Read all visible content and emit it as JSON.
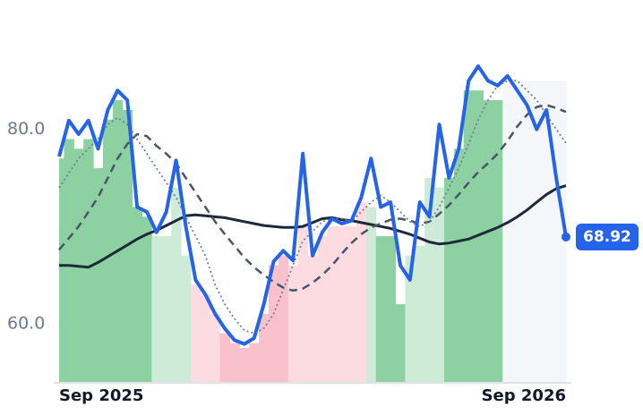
{
  "chart_data": {
    "type": "line",
    "categories": [
      "Sep 2025",
      null,
      null,
      null,
      null,
      null,
      null,
      null,
      null,
      null,
      null,
      null,
      null,
      null,
      null,
      null,
      null,
      null,
      null,
      null,
      null,
      null,
      null,
      null,
      null,
      null,
      null,
      null,
      null,
      null,
      null,
      null,
      null,
      null,
      null,
      null,
      null,
      null,
      null,
      null,
      null,
      null,
      null,
      null,
      null,
      null,
      null,
      null,
      null,
      null,
      null,
      null,
      "Sep 2026"
    ],
    "ylim": [
      54,
      90
    ],
    "yticks": [
      {
        "value": 60,
        "label": "60.0"
      },
      {
        "value": 80,
        "label": "80.0"
      }
    ],
    "bars": {
      "values": [
        77,
        79,
        78,
        79,
        76,
        81,
        83,
        82,
        72,
        71,
        69,
        69,
        74,
        67,
        64,
        63,
        61,
        59,
        58,
        57.5,
        58,
        61,
        66,
        67,
        66,
        70,
        67,
        69,
        70,
        70,
        70,
        72.5,
        72,
        69,
        69,
        62,
        67,
        68,
        75,
        74,
        75,
        78,
        84,
        84,
        83,
        83,
        85,
        85,
        85,
        85,
        85,
        85,
        85
      ],
      "colors": [
        "#8dd0a1",
        "#8dd0a1",
        "#8dd0a1",
        "#8dd0a1",
        "#8dd0a1",
        "#8dd0a1",
        "#8dd0a1",
        "#8dd0a1",
        "#8dd0a1",
        "#8dd0a1",
        "#cdebd7",
        "#cdebd7",
        "#cdebd7",
        "#cdebd7",
        "#fcdbe1",
        "#fcdbe1",
        "#fcdbe1",
        "#f8c1cb",
        "#f8c1cb",
        "#f8c1cb",
        "#f8c1cb",
        "#f8c1cb",
        "#f8c1cb",
        "#f8c1cb",
        "#fcdbe1",
        "#fcdbe1",
        "#fcdbe1",
        "#fcdbe1",
        "#fcdbe1",
        "#fcdbe1",
        "#fcdbe1",
        "#fcdbe1",
        "#cdebd7",
        "#8dd0a1",
        "#8dd0a1",
        "#8dd0a1",
        "#cdebd7",
        "#cdebd7",
        "#cdebd7",
        "#cdebd7",
        "#8dd0a1",
        "#8dd0a1",
        "#8dd0a1",
        "#8dd0a1",
        "#8dd0a1",
        "#8dd0a1",
        "#f5f6f9",
        "#f5f6f9",
        "#f5f6f9",
        "#f5f6f9",
        "#f5f6f9",
        "#f5f6f9",
        "#f5f6f9"
      ]
    },
    "series": [
      {
        "color": "#1e2a3b",
        "style": "solid",
        "values": [
          66,
          66,
          65.9,
          65.8,
          66.3,
          66.9,
          67.5,
          68.1,
          68.7,
          69.2,
          69.6,
          70.1,
          70.6,
          71.1,
          71.2,
          71.1,
          71,
          70.9,
          70.7,
          70.5,
          70.3,
          70.1,
          70,
          69.9,
          69.9,
          70,
          70.4,
          70.8,
          70.9,
          70.7,
          70.6,
          70.4,
          70.2,
          70,
          69.8,
          69.5,
          69.2,
          68.8,
          68.4,
          68.2,
          68.3,
          68.5,
          68.7,
          69.1,
          69.5,
          69.9,
          70.4,
          71,
          71.7,
          72.5,
          73.3,
          73.9,
          74.2
        ]
      },
      {
        "color": "#4a5568",
        "style": "dashed",
        "values": [
          67.6,
          68.8,
          70,
          71.5,
          73,
          75,
          77,
          78.5,
          79.5,
          79.3,
          78.3,
          77.5,
          76.5,
          75,
          73.5,
          72,
          70.5,
          69.2,
          68,
          66.8,
          65.8,
          65,
          64.3,
          63.7,
          63.4,
          63.6,
          64.2,
          65,
          66,
          67.2,
          68.3,
          69.2,
          69.9,
          70.3,
          70.7,
          70.8,
          70.6,
          70.3,
          70.5,
          71.3,
          72.2,
          73.3,
          74.5,
          75.6,
          76.5,
          77.5,
          78.8,
          80.3,
          81.5,
          82.3,
          82.5,
          82.2,
          81.8
        ]
      },
      {
        "color": "#718096",
        "style": "dotted",
        "values": [
          74,
          75.5,
          77,
          78,
          79,
          80.5,
          81.2,
          80.5,
          79,
          77.5,
          76,
          74.5,
          73,
          71,
          69,
          67,
          64,
          62,
          60.5,
          59.3,
          59,
          59.5,
          61,
          63.5,
          66,
          68.5,
          69.5,
          70.5,
          70.8,
          70.8,
          70.5,
          71.5,
          72.5,
          73.2,
          72.5,
          71.5,
          70.5,
          70,
          70.5,
          72,
          74,
          76,
          78.5,
          81,
          83,
          84.5,
          85,
          85,
          84,
          83,
          81.5,
          80,
          78.6
        ]
      },
      {
        "color": "#2563eb",
        "style": "solid",
        "last_label": true,
        "values": [
          77.2,
          80.9,
          79.5,
          80.9,
          78,
          82,
          84,
          83,
          72,
          71.5,
          69.4,
          71.5,
          76.8,
          70,
          64.5,
          63,
          61,
          59.5,
          58.3,
          57.9,
          58.5,
          62,
          66.4,
          67.5,
          66.5,
          77.5,
          67,
          69.4,
          70.8,
          70.3,
          70.6,
          73,
          77,
          72,
          72.5,
          66,
          64.5,
          72.5,
          71,
          80.5,
          75,
          78,
          85,
          86.5,
          85,
          84.5,
          85.5,
          84,
          82.5,
          80,
          82,
          75,
          68.92
        ]
      }
    ]
  }
}
